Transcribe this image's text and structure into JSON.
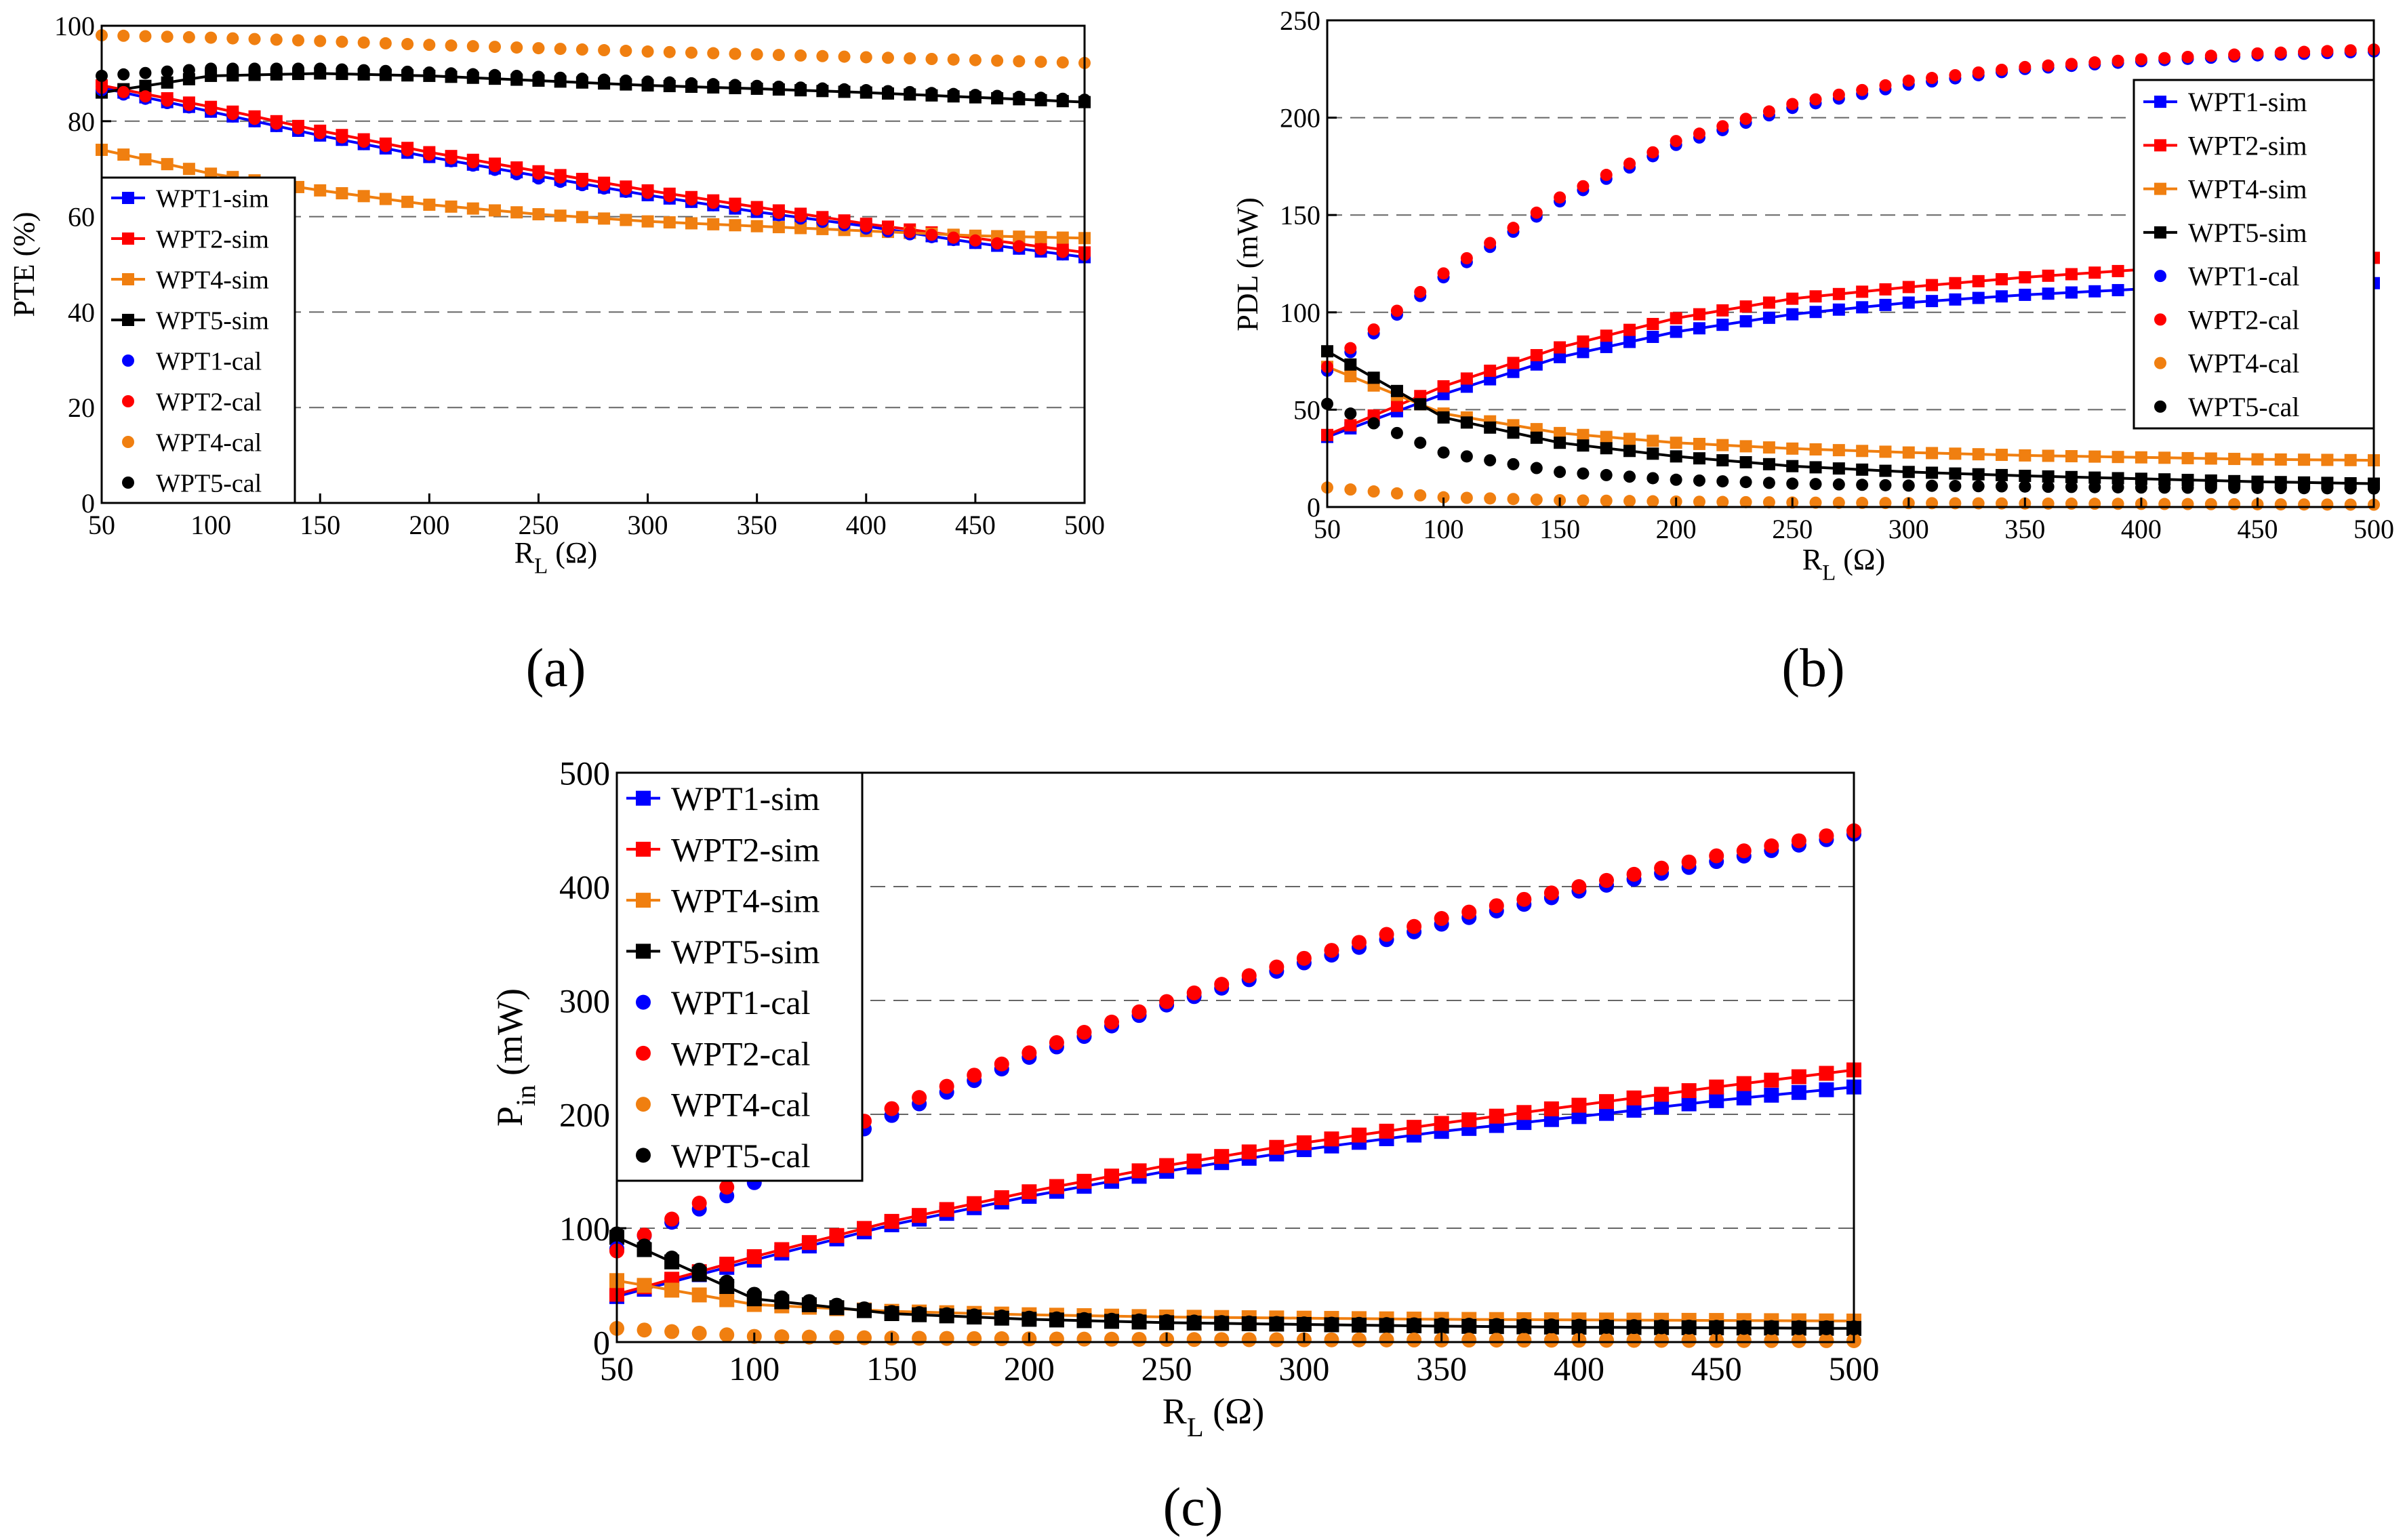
{
  "chart_data": [
    {
      "panel": "(a)",
      "type": "scatter",
      "title": "",
      "xlabel": "R",
      "xlabel_sub": "L",
      "xlabel_unit": "(Ω)",
      "ylabel": "PTE (%)",
      "ylabel_sub": "",
      "ylabel_unit": "",
      "xlim": [
        50,
        500
      ],
      "ylim": [
        0,
        100
      ],
      "xticks": [
        50,
        100,
        150,
        200,
        250,
        300,
        350,
        400,
        450,
        500
      ],
      "yticks": [
        0,
        20,
        40,
        60,
        80,
        100
      ],
      "grid": "horizontal dashed",
      "legend_position": "bottom-left",
      "series": [
        {
          "name": "WPT1-sim",
          "style": "sim",
          "color": "#0000ff",
          "x": [
            50,
            100,
            150,
            200,
            250,
            300,
            350,
            400,
            450,
            500
          ],
          "values": [
            87,
            82,
            77,
            72.5,
            68.5,
            64.5,
            61,
            58,
            54.5,
            51.5
          ]
        },
        {
          "name": "WPT2-sim",
          "style": "sim",
          "color": "#ff0000",
          "x": [
            50,
            100,
            150,
            200,
            250,
            300,
            350,
            400,
            450,
            500
          ],
          "values": [
            87.5,
            83,
            78,
            73.5,
            69.5,
            65.5,
            62,
            58.5,
            55.5,
            52.5
          ]
        },
        {
          "name": "WPT4-sim",
          "style": "sim",
          "color": "#f07f10",
          "x": [
            50,
            100,
            150,
            200,
            250,
            300,
            350,
            400,
            450,
            500
          ],
          "values": [
            74,
            69,
            65.5,
            62.5,
            60.5,
            59,
            58,
            57,
            56,
            55.5
          ]
        },
        {
          "name": "WPT5-sim",
          "style": "sim",
          "color": "#000000",
          "x": [
            50,
            100,
            150,
            200,
            250,
            300,
            350,
            400,
            450,
            500
          ],
          "values": [
            86,
            89.5,
            90,
            89.5,
            88.5,
            87.5,
            86.8,
            86,
            85,
            84
          ]
        },
        {
          "name": "WPT1-cal",
          "style": "cal",
          "color": "#0000ff",
          "x": [
            50,
            100,
            150,
            200,
            250,
            300,
            350,
            400,
            450,
            500
          ],
          "values": [
            86.5,
            82,
            77,
            72.5,
            68,
            64.5,
            61,
            57.5,
            54.5,
            51.5
          ]
        },
        {
          "name": "WPT2-cal",
          "style": "cal",
          "color": "#ff0000",
          "x": [
            50,
            100,
            150,
            200,
            250,
            300,
            350,
            400,
            450,
            500
          ],
          "values": [
            87,
            82.5,
            77.5,
            73,
            69,
            65,
            61.5,
            58,
            55,
            52
          ]
        },
        {
          "name": "WPT4-cal",
          "style": "cal",
          "color": "#f07f10",
          "x": [
            50,
            100,
            150,
            200,
            250,
            300,
            350,
            400,
            450,
            500
          ],
          "values": [
            98,
            97.5,
            96.8,
            96,
            95.3,
            94.6,
            94,
            93.4,
            92.8,
            92.2
          ]
        },
        {
          "name": "WPT5-cal",
          "style": "cal",
          "color": "#000000",
          "x": [
            50,
            100,
            150,
            200,
            250,
            300,
            350,
            400,
            450,
            500
          ],
          "values": [
            89.5,
            91,
            91,
            90.2,
            89.3,
            88.3,
            87.4,
            86.5,
            85.5,
            84.5
          ]
        }
      ]
    },
    {
      "panel": "(b)",
      "type": "scatter",
      "title": "",
      "xlabel": "R",
      "xlabel_sub": "L",
      "xlabel_unit": "(Ω)",
      "ylabel": "PDL (mW)",
      "ylabel_sub": "",
      "ylabel_unit": "",
      "xlim": [
        50,
        500
      ],
      "ylim": [
        0,
        250
      ],
      "xticks": [
        50,
        100,
        150,
        200,
        250,
        300,
        350,
        400,
        450,
        500
      ],
      "yticks": [
        0,
        50,
        100,
        150,
        200,
        250
      ],
      "grid": "horizontal dashed",
      "legend_position": "right",
      "series": [
        {
          "name": "WPT1-sim",
          "style": "sim",
          "color": "#0000ff",
          "x": [
            50,
            100,
            150,
            200,
            250,
            300,
            350,
            400,
            450,
            500
          ],
          "values": [
            36,
            58,
            77,
            90,
            99,
            105,
            109,
            112,
            114,
            115
          ]
        },
        {
          "name": "WPT2-sim",
          "style": "sim",
          "color": "#ff0000",
          "x": [
            50,
            100,
            150,
            200,
            250,
            300,
            350,
            400,
            450,
            500
          ],
          "values": [
            37,
            62,
            82,
            97,
            107,
            113,
            118,
            122,
            125,
            128
          ]
        },
        {
          "name": "WPT4-sim",
          "style": "sim",
          "color": "#f07f10",
          "x": [
            50,
            100,
            150,
            200,
            250,
            300,
            350,
            400,
            450,
            500
          ],
          "values": [
            72,
            48,
            38,
            33,
            30,
            28,
            26.5,
            25.5,
            24.5,
            24
          ]
        },
        {
          "name": "WPT5-sim",
          "style": "sim",
          "color": "#000000",
          "x": [
            50,
            100,
            150,
            200,
            250,
            300,
            350,
            400,
            450,
            500
          ],
          "values": [
            80,
            46,
            33,
            26,
            21,
            18,
            16,
            14.5,
            13,
            12
          ]
        },
        {
          "name": "WPT1-cal",
          "style": "cal",
          "color": "#0000ff",
          "x": [
            50,
            100,
            150,
            200,
            250,
            300,
            350,
            400,
            450,
            500
          ],
          "values": [
            70,
            118,
            157,
            186,
            205,
            217,
            225,
            229,
            232,
            234
          ]
        },
        {
          "name": "WPT2-cal",
          "style": "cal",
          "color": "#ff0000",
          "x": [
            50,
            100,
            150,
            200,
            250,
            300,
            350,
            400,
            450,
            500
          ],
          "values": [
            72,
            120,
            159,
            188,
            207,
            219,
            226,
            230,
            233,
            235
          ]
        },
        {
          "name": "WPT4-cal",
          "style": "cal",
          "color": "#f07f10",
          "x": [
            50,
            100,
            150,
            200,
            250,
            300,
            350,
            400,
            450,
            500
          ],
          "values": [
            10,
            5,
            3.5,
            2.8,
            2.3,
            2,
            1.8,
            1.6,
            1.4,
            1.2
          ]
        },
        {
          "name": "WPT5-cal",
          "style": "cal",
          "color": "#000000",
          "x": [
            50,
            100,
            150,
            200,
            250,
            300,
            350,
            400,
            450,
            500
          ],
          "values": [
            53,
            28,
            18,
            14,
            12,
            11,
            10.5,
            10,
            9.8,
            9.5
          ]
        }
      ]
    },
    {
      "panel": "(c)",
      "type": "scatter",
      "title": "",
      "xlabel": "R",
      "xlabel_sub": "L",
      "xlabel_unit": "(Ω)",
      "ylabel": "P",
      "ylabel_sub": "in",
      "ylabel_unit": "(mW)",
      "xlim": [
        50,
        500
      ],
      "ylim": [
        0,
        500
      ],
      "xticks": [
        50,
        100,
        150,
        200,
        250,
        300,
        350,
        400,
        450,
        500
      ],
      "yticks": [
        0,
        100,
        200,
        300,
        400,
        500
      ],
      "grid": "horizontal dashed",
      "legend_position": "top-left",
      "series": [
        {
          "name": "WPT1-sim",
          "style": "sim",
          "color": "#0000ff",
          "x": [
            50,
            100,
            150,
            200,
            250,
            300,
            350,
            400,
            450,
            500
          ],
          "values": [
            40,
            72,
            103,
            128,
            150,
            169,
            185,
            198,
            212,
            224
          ]
        },
        {
          "name": "WPT2-sim",
          "style": "sim",
          "color": "#ff0000",
          "x": [
            50,
            100,
            150,
            200,
            250,
            300,
            350,
            400,
            450,
            500
          ],
          "values": [
            42,
            75,
            106,
            132,
            155,
            175,
            192,
            208,
            224,
            239
          ]
        },
        {
          "name": "WPT4-sim",
          "style": "sim",
          "color": "#f07f10",
          "x": [
            50,
            100,
            150,
            200,
            250,
            300,
            350,
            400,
            450,
            500
          ],
          "values": [
            54,
            33,
            27,
            24,
            22,
            21,
            20,
            19.5,
            19,
            18.5
          ]
        },
        {
          "name": "WPT5-sim",
          "style": "sim",
          "color": "#000000",
          "x": [
            50,
            100,
            150,
            200,
            250,
            300,
            350,
            400,
            450,
            500
          ],
          "values": [
            92,
            38,
            25,
            20,
            17,
            15.5,
            14,
            13,
            12.5,
            12
          ]
        },
        {
          "name": "WPT1-cal",
          "style": "cal",
          "color": "#0000ff",
          "x": [
            50,
            100,
            150,
            200,
            250,
            300,
            350,
            400,
            450,
            500
          ],
          "values": [
            82,
            140,
            199,
            250,
            296,
            333,
            367,
            396,
            422,
            446
          ]
        },
        {
          "name": "WPT2-cal",
          "style": "cal",
          "color": "#ff0000",
          "x": [
            50,
            100,
            150,
            200,
            250,
            300,
            350,
            400,
            450,
            500
          ],
          "values": [
            80,
            150,
            205,
            254,
            299,
            337,
            372,
            400,
            427,
            449
          ]
        },
        {
          "name": "WPT4-cal",
          "style": "cal",
          "color": "#f07f10",
          "x": [
            50,
            100,
            150,
            200,
            250,
            300,
            350,
            400,
            450,
            500
          ],
          "values": [
            12,
            5,
            3.5,
            2.8,
            2.3,
            2,
            1.8,
            1.6,
            1.4,
            1.2
          ]
        },
        {
          "name": "WPT5-cal",
          "style": "cal",
          "color": "#000000",
          "x": [
            50,
            100,
            150,
            200,
            250,
            300,
            350,
            400,
            450,
            500
          ],
          "values": [
            95,
            42,
            26,
            21,
            18,
            16,
            15,
            14,
            13,
            12.5
          ]
        }
      ]
    }
  ]
}
